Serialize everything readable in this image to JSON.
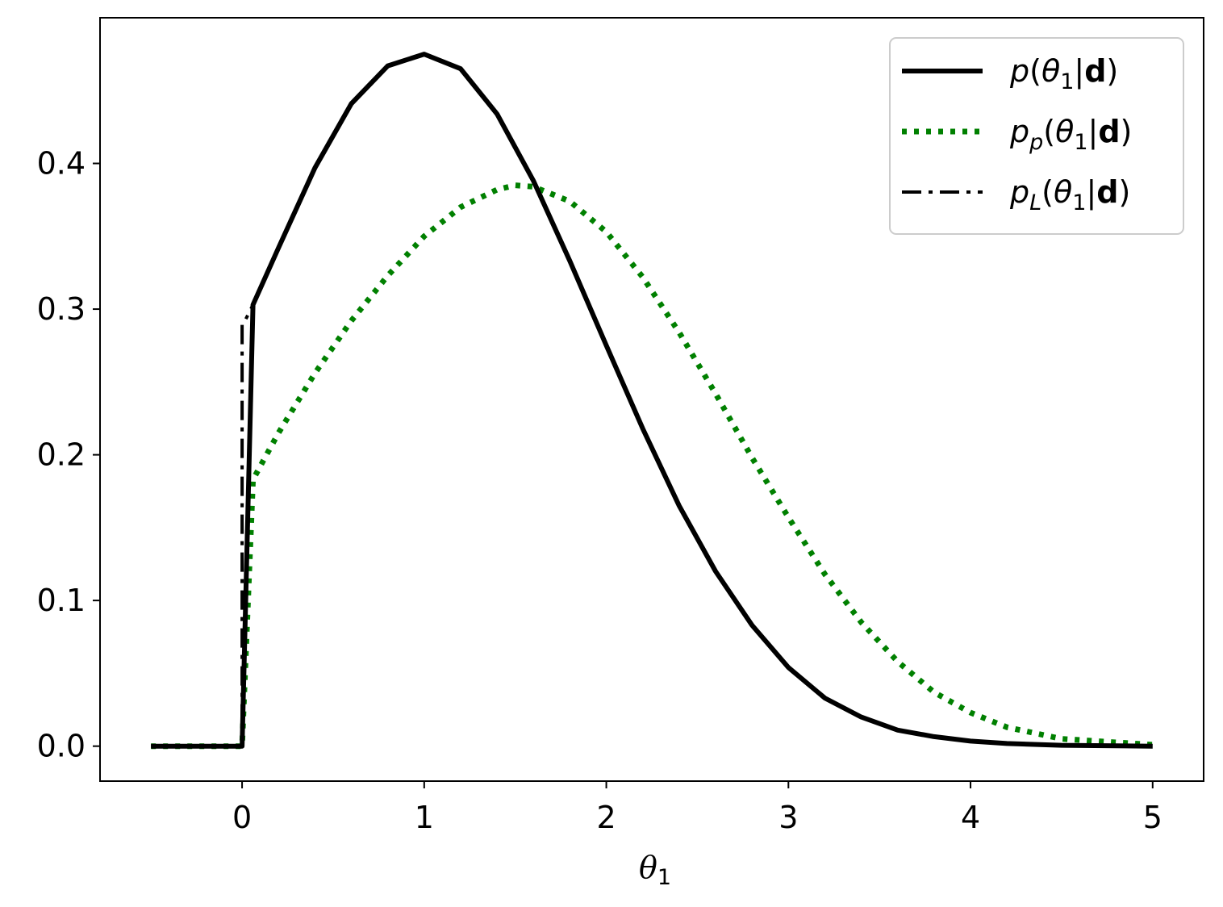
{
  "chart_data": {
    "type": "line",
    "title": "",
    "xlabel": "θ1",
    "ylabel": "",
    "xlim": [
      -0.78,
      5.28
    ],
    "ylim": [
      -0.024,
      0.5
    ],
    "xticks": [
      0,
      1,
      2,
      3,
      4,
      5
    ],
    "xtick_labels": [
      "0",
      "1",
      "2",
      "3",
      "4",
      "5"
    ],
    "yticks": [
      0.0,
      0.1,
      0.2,
      0.3,
      0.4
    ],
    "ytick_labels": [
      "0.0",
      "0.1",
      "0.2",
      "0.3",
      "0.4"
    ],
    "grid": false,
    "legend_position": "top-right",
    "series": [
      {
        "name": "p(θ1|d)",
        "legend_parts": [
          "p(θ",
          "1",
          "|",
          "d",
          ")"
        ],
        "color": "#000000",
        "style": "solid",
        "x": [
          -0.5,
          0.0,
          0.06,
          0.2,
          0.4,
          0.6,
          0.8,
          1.0,
          1.2,
          1.4,
          1.6,
          1.8,
          2.0,
          2.2,
          2.4,
          2.6,
          2.8,
          3.0,
          3.2,
          3.4,
          3.6,
          3.8,
          4.0,
          4.2,
          4.5,
          5.0
        ],
        "y": [
          0.0,
          0.0,
          0.303,
          0.342,
          0.397,
          0.441,
          0.467,
          0.475,
          0.465,
          0.434,
          0.388,
          0.333,
          0.275,
          0.218,
          0.165,
          0.12,
          0.083,
          0.054,
          0.033,
          0.02,
          0.011,
          0.0065,
          0.0035,
          0.0018,
          0.0006,
          0.0
        ]
      },
      {
        "name": "p_p(θ1|d)",
        "legend_parts": [
          "p",
          "p",
          "(θ",
          "1",
          "|",
          "d",
          ")"
        ],
        "color": "#008000",
        "style": "dotted",
        "x": [
          -0.5,
          0.0,
          0.06,
          0.2,
          0.4,
          0.6,
          0.8,
          1.0,
          1.2,
          1.4,
          1.5,
          1.6,
          1.8,
          2.0,
          2.2,
          2.4,
          2.6,
          2.8,
          3.0,
          3.2,
          3.4,
          3.6,
          3.8,
          4.0,
          4.2,
          4.5,
          5.0
        ],
        "y": [
          0.0,
          0.0,
          0.183,
          0.215,
          0.256,
          0.292,
          0.323,
          0.35,
          0.37,
          0.382,
          0.385,
          0.384,
          0.374,
          0.353,
          0.322,
          0.284,
          0.242,
          0.198,
          0.157,
          0.118,
          0.085,
          0.058,
          0.037,
          0.023,
          0.013,
          0.005,
          0.001
        ]
      },
      {
        "name": "p_L(θ1|d)",
        "legend_parts": [
          "p",
          "L",
          "(θ",
          "1",
          "|",
          "d",
          ")"
        ],
        "color": "#000000",
        "style": "dashdot",
        "x": [
          -0.5,
          0.0,
          0.0,
          0.02,
          0.04,
          0.06
        ],
        "y": [
          0.0,
          0.0,
          0.29,
          0.293,
          0.298,
          0.303
        ]
      }
    ]
  }
}
